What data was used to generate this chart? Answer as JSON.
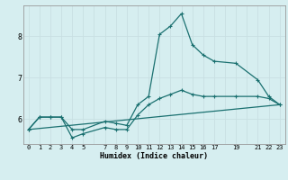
{
  "xlabel": "Humidex (Indice chaleur)",
  "bg_color": "#d6eef0",
  "grid_color": "#c8dfe2",
  "line_color": "#1a7070",
  "xlim": [
    -0.5,
    23.5
  ],
  "ylim": [
    5.4,
    8.75
  ],
  "yticks": [
    6,
    7,
    8
  ],
  "xticks": [
    0,
    1,
    2,
    3,
    4,
    5,
    7,
    8,
    9,
    10,
    11,
    12,
    13,
    14,
    15,
    16,
    17,
    19,
    21,
    22,
    23
  ],
  "xtick_labels": [
    "0",
    "1",
    "2",
    "3",
    "4",
    "5",
    "7",
    "8",
    "9",
    "10",
    "11",
    "12",
    "13",
    "14",
    "15",
    "16",
    "17",
    "19",
    "21",
    "22",
    "23"
  ],
  "line1_x": [
    0,
    1,
    2,
    3,
    4,
    5,
    7,
    8,
    9,
    10,
    11,
    12,
    13,
    14,
    15,
    16,
    17,
    19,
    21,
    22,
    23
  ],
  "line1_y": [
    5.75,
    6.05,
    6.05,
    6.05,
    5.75,
    5.75,
    5.95,
    5.9,
    5.85,
    6.35,
    6.55,
    8.05,
    8.25,
    8.55,
    7.8,
    7.55,
    7.4,
    7.35,
    6.95,
    6.55,
    6.35
  ],
  "line2_x": [
    0,
    1,
    2,
    3,
    4,
    5,
    7,
    8,
    9,
    10,
    11,
    12,
    13,
    14,
    15,
    16,
    17,
    19,
    21,
    22,
    23
  ],
  "line2_y": [
    5.75,
    6.05,
    6.05,
    6.05,
    5.55,
    5.65,
    5.8,
    5.75,
    5.75,
    6.1,
    6.35,
    6.5,
    6.6,
    6.7,
    6.6,
    6.55,
    6.55,
    6.55,
    6.55,
    6.5,
    6.35
  ],
  "line3_x": [
    0,
    23
  ],
  "line3_y": [
    5.75,
    6.35
  ],
  "ytick_fontsize": 6,
  "xtick_fontsize": 5,
  "xlabel_fontsize": 6
}
